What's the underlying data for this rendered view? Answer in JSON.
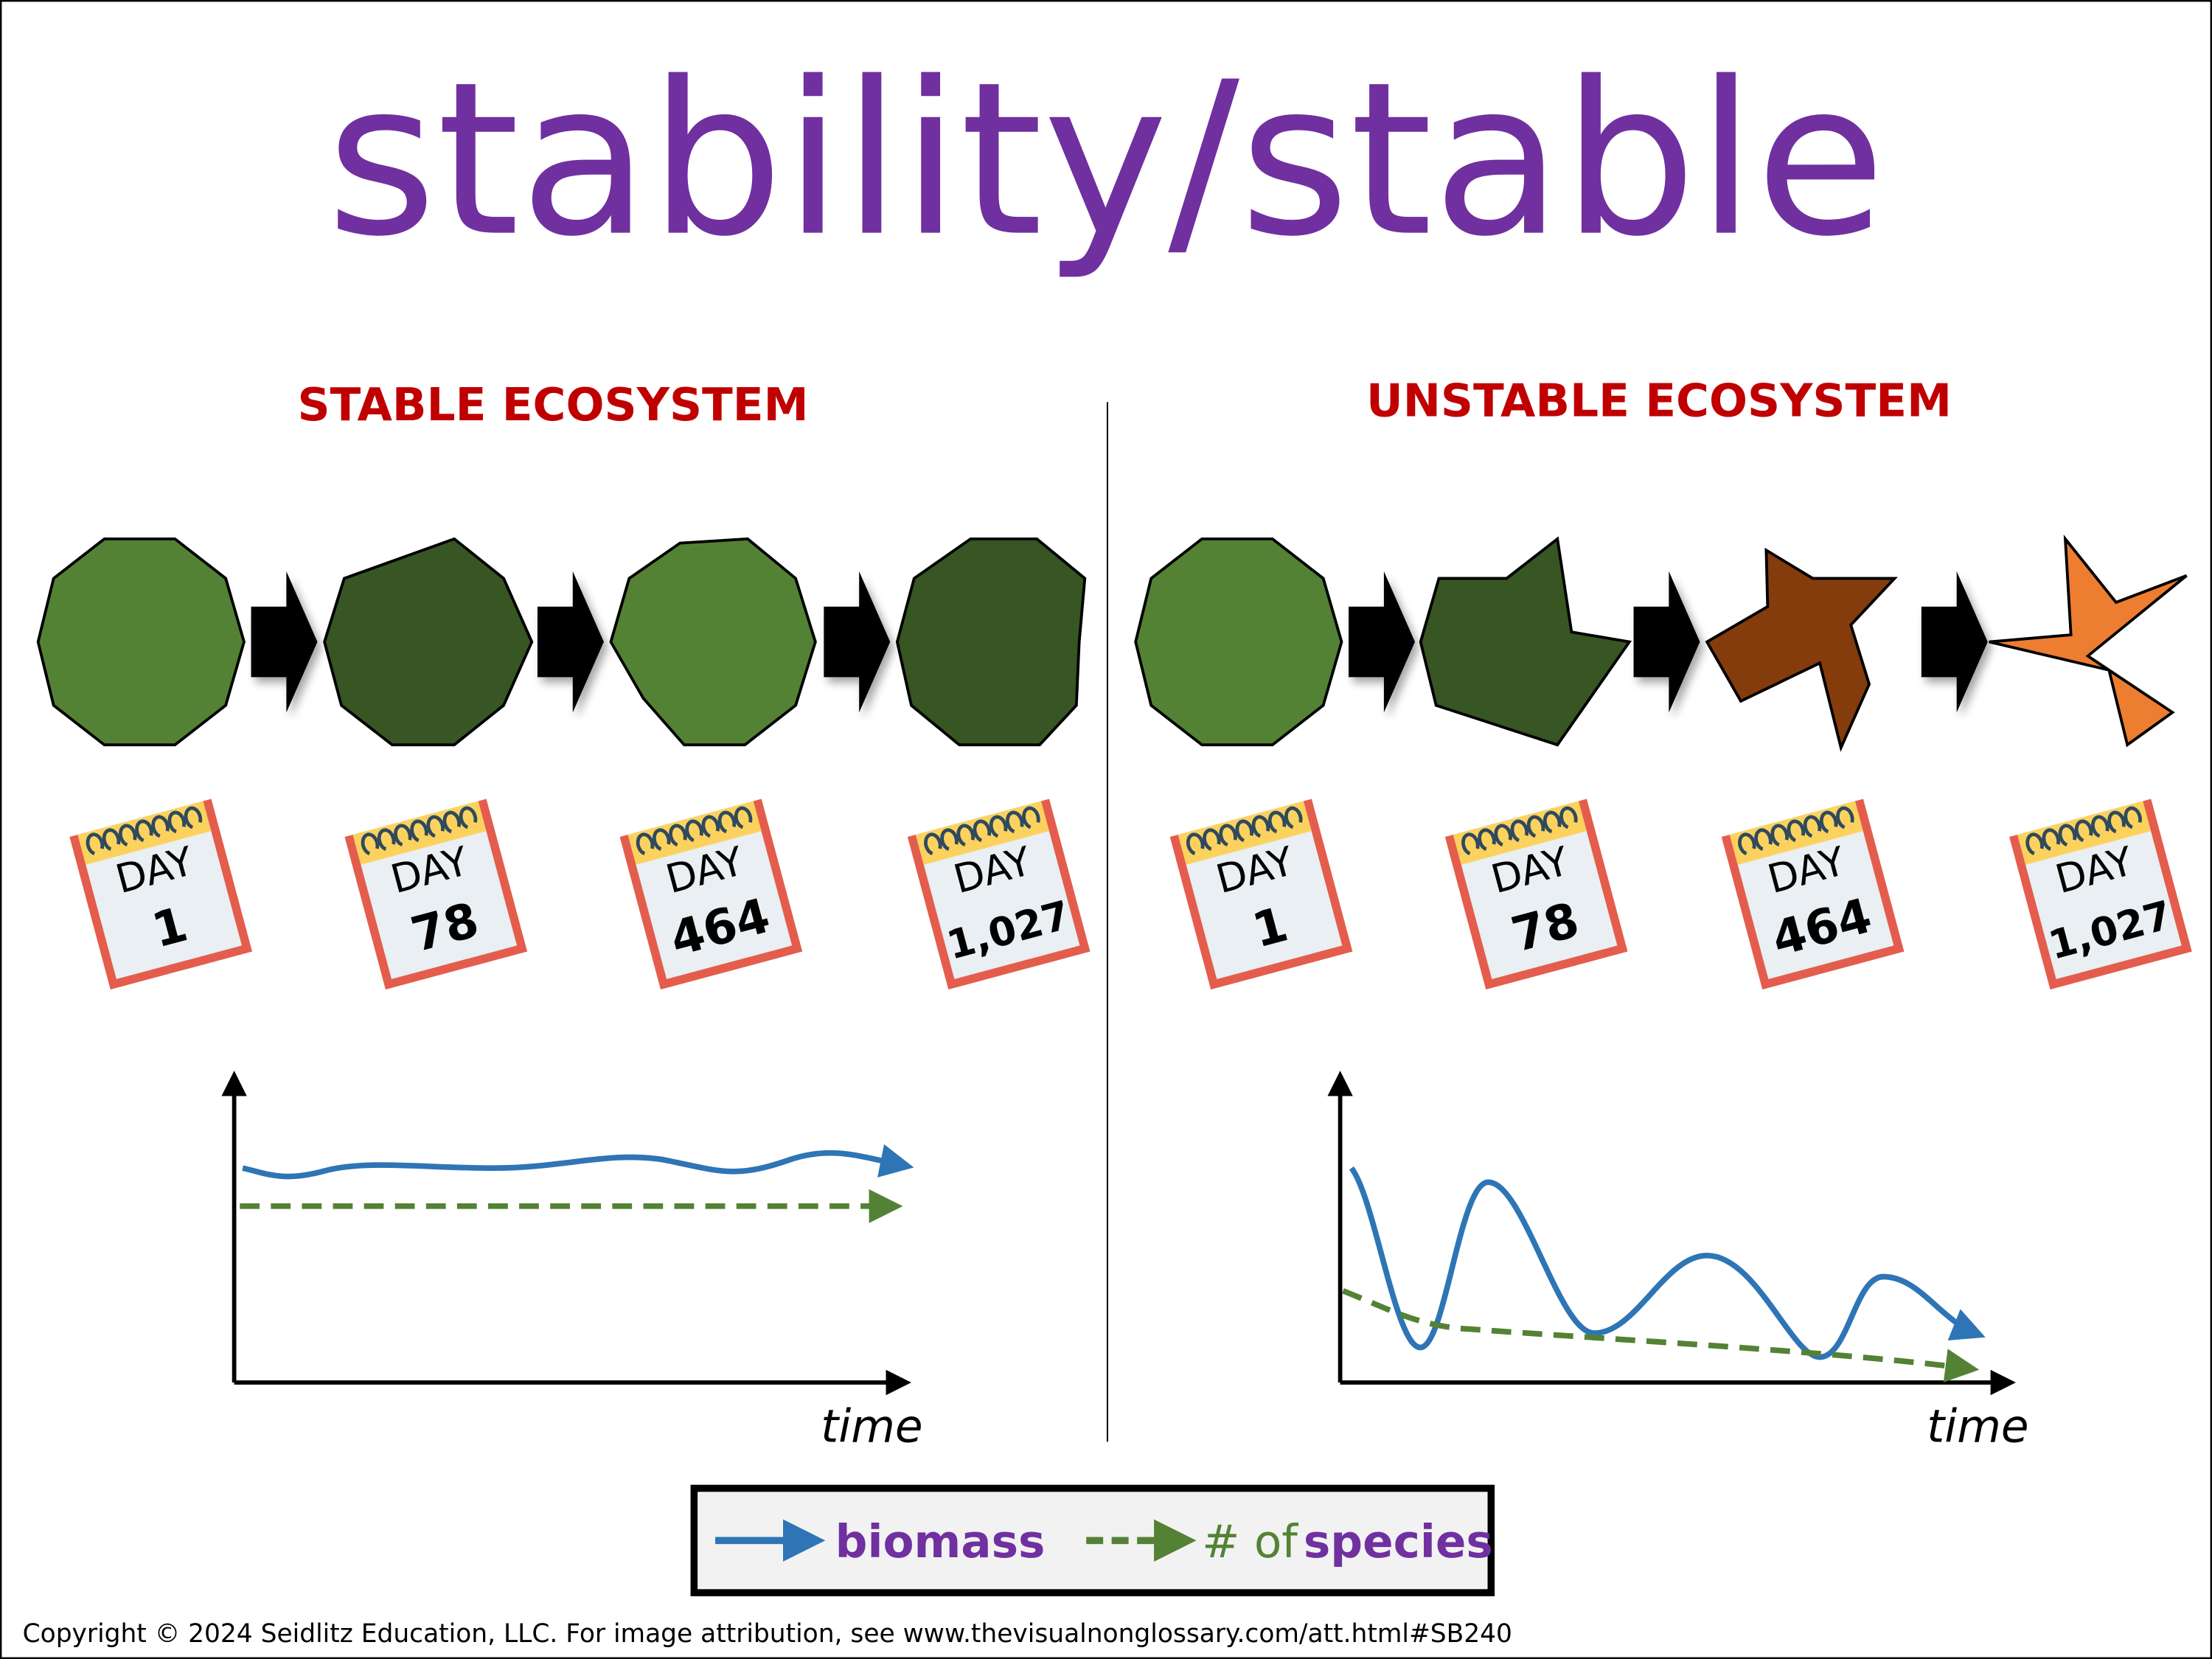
{
  "title": "stability/stable",
  "colors": {
    "title": "#7030a0",
    "heading": "#c00000",
    "biomass": "#2e75b6",
    "species": "#548235",
    "light_green": "#548235",
    "dark_green": "#375623",
    "brown": "#843c0c",
    "orange": "#ed7d31"
  },
  "stable": {
    "heading": "STABLE ECOSYSTEM",
    "days": [
      {
        "label": "DAY",
        "number": "1"
      },
      {
        "label": "DAY",
        "number": "78"
      },
      {
        "label": "DAY",
        "number": "464"
      },
      {
        "label": "DAY",
        "number": "1,027"
      }
    ],
    "graph": {
      "xlabel": "time"
    }
  },
  "unstable": {
    "heading": "UNSTABLE ECOSYSTEM",
    "days": [
      {
        "label": "DAY",
        "number": "1"
      },
      {
        "label": "DAY",
        "number": "78"
      },
      {
        "label": "DAY",
        "number": "464"
      },
      {
        "label": "DAY",
        "number": "1,027"
      }
    ],
    "graph": {
      "xlabel": "time"
    }
  },
  "legend": {
    "biomass": "biomass",
    "species_prefix": "# of",
    "species_word": "species"
  },
  "footer": "Copyright © 2024 Seidlitz Education, LLC.  For image attribution, see www.thevisualnonglossary.com/att.html#SB240"
}
